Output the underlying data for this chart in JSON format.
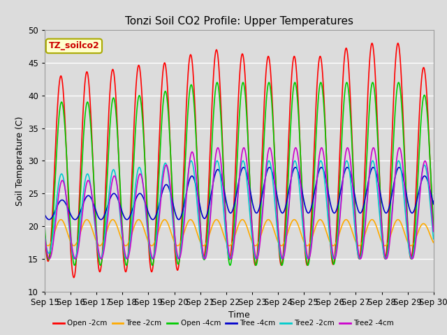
{
  "title": "Tonzi Soil CO2 Profile: Upper Temperatures",
  "xlabel": "Time",
  "ylabel": "Soil Temperature (C)",
  "ylim": [
    10,
    50
  ],
  "xlim": [
    0,
    15
  ],
  "background_color": "#dcdcdc",
  "plot_bg_color": "#dcdcdc",
  "grid_color": "white",
  "series": [
    {
      "label": "Open -2cm",
      "color": "#ff0000",
      "lw": 1.2
    },
    {
      "label": "Tree -2cm",
      "color": "#ffaa00",
      "lw": 1.2
    },
    {
      "label": "Open -4cm",
      "color": "#00cc00",
      "lw": 1.2
    },
    {
      "label": "Tree -4cm",
      "color": "#0000cc",
      "lw": 1.2
    },
    {
      "label": "Tree2 -2cm",
      "color": "#00cccc",
      "lw": 1.2
    },
    {
      "label": "Tree2 -4cm",
      "color": "#cc00cc",
      "lw": 1.2
    }
  ],
  "xtick_labels": [
    "Sep 15",
    "Sep 16",
    "Sep 17",
    "Sep 18",
    "Sep 19",
    "Sep 20",
    "Sep 21",
    "Sep 22",
    "Sep 23",
    "Sep 24",
    "Sep 25",
    "Sep 26",
    "Sep 27",
    "Sep 28",
    "Sep 29",
    "Sep 30"
  ],
  "xtick_positions": [
    0,
    1,
    2,
    3,
    4,
    5,
    6,
    7,
    8,
    9,
    10,
    11,
    12,
    13,
    14,
    15
  ],
  "annotation_text": "TZ_soilco2",
  "annotation_color": "#cc0000",
  "annotation_bg": "#ffffcc",
  "annotation_border": "#aaaa00",
  "days": 15,
  "points_per_day": 288
}
